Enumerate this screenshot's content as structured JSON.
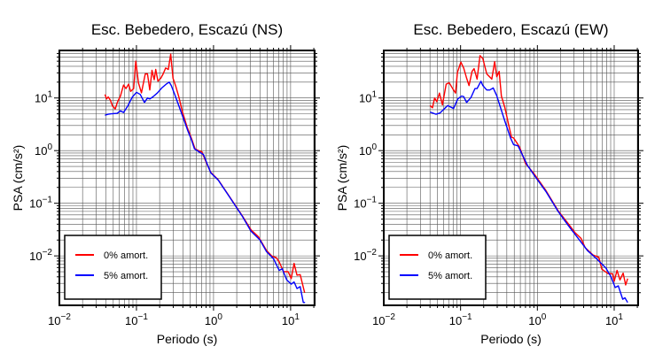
{
  "chart_data": [
    {
      "type": "line",
      "title": "Esc. Bebedero, Escazú (NS)",
      "xlabel": "Periodo (s)",
      "ylabel": "PSA (cm/s²)",
      "xscale": "log",
      "yscale": "log",
      "xlim": [
        0.01,
        20.5
      ],
      "ylim": [
        0.00115,
        80
      ],
      "xticks": [
        0.01,
        0.1,
        1,
        10
      ],
      "xtick_labels": [
        "10^-2",
        "10^-1",
        "10^0",
        "10^1"
      ],
      "yticks": [
        10,
        1,
        0.1,
        0.01
      ],
      "ytick_labels": [
        "10^1",
        "10^0",
        "10^-1",
        "10^-2"
      ],
      "grid": true,
      "legend_position": "bottom-left",
      "series": [
        {
          "name": "0% amort.",
          "color": "#ff0000",
          "x": [
            0.039,
            0.041,
            0.043,
            0.046,
            0.049,
            0.053,
            0.057,
            0.062,
            0.068,
            0.073,
            0.079,
            0.084,
            0.092,
            0.098,
            0.106,
            0.116,
            0.13,
            0.139,
            0.149,
            0.159,
            0.17,
            0.178,
            0.19,
            0.207,
            0.222,
            0.239,
            0.259,
            0.278,
            0.298,
            0.326,
            0.356,
            0.396,
            0.453,
            0.518,
            0.576,
            0.645,
            0.707,
            0.77,
            0.92,
            1.15,
            1.64,
            2.34,
            3.06,
            3.85,
            4.85,
            5.7,
            6.5,
            7.1,
            8.1,
            9.3,
            10.2,
            11.1,
            12.1,
            13.3,
            15.2
          ],
          "y": [
            11.7,
            9.6,
            10.5,
            9.0,
            7.0,
            6.2,
            8.5,
            10.9,
            17.6,
            15.1,
            18.3,
            13.3,
            15.1,
            50,
            19.5,
            12.5,
            28.7,
            28.7,
            14.2,
            33.5,
            22.2,
            34.8,
            20.8,
            23.7,
            28.7,
            37.2,
            34.8,
            68,
            23.7,
            16.1,
            10.3,
            5.4,
            2.84,
            1.69,
            1.08,
            0.99,
            0.95,
            0.69,
            0.385,
            0.28,
            0.129,
            0.059,
            0.0314,
            0.0228,
            0.0128,
            0.0099,
            0.0093,
            0.0077,
            0.005,
            0.005,
            0.0037,
            0.0072,
            0.0043,
            0.0044,
            0.002
          ]
        },
        {
          "name": "5% amort.",
          "color": "#0000ff",
          "x": [
            0.039,
            0.043,
            0.047,
            0.056,
            0.062,
            0.068,
            0.077,
            0.088,
            0.1,
            0.112,
            0.127,
            0.139,
            0.149,
            0.163,
            0.186,
            0.213,
            0.243,
            0.266,
            0.283,
            0.318,
            0.356,
            0.404,
            0.466,
            0.518,
            0.566,
            0.645,
            0.74,
            0.92,
            1.15,
            1.64,
            2.34,
            3.06,
            4.0,
            4.85,
            6.0,
            7.1,
            7.8,
            8.9,
            10.2,
            11.1,
            12.1,
            13.3,
            14.6,
            15.4
          ],
          "y": [
            4.7,
            4.9,
            5.0,
            5.1,
            5.7,
            5.3,
            7.0,
            10.3,
            12.8,
            11.7,
            8.2,
            10.0,
            9.6,
            10.5,
            12.4,
            15.5,
            18.3,
            20,
            17.2,
            11,
            7.0,
            4.2,
            2.33,
            1.59,
            1.08,
            0.95,
            0.84,
            0.38,
            0.275,
            0.127,
            0.058,
            0.0294,
            0.0201,
            0.0121,
            0.0088,
            0.0053,
            0.0057,
            0.0035,
            0.0029,
            0.0032,
            0.0024,
            0.0026,
            0.0013,
            0.0013
          ]
        }
      ]
    },
    {
      "type": "line",
      "title": "Esc. Bebedero, Escazú (EW)",
      "xlabel": "Periodo (s)",
      "ylabel": "PSA (cm/s²)",
      "xscale": "log",
      "yscale": "log",
      "xlim": [
        0.01,
        20.5
      ],
      "ylim": [
        0.00115,
        80
      ],
      "xticks": [
        0.01,
        0.1,
        1,
        10
      ],
      "xtick_labels": [
        "10^-2",
        "10^-1",
        "10^0",
        "10^1"
      ],
      "yticks": [
        10,
        1,
        0.1,
        0.01
      ],
      "ytick_labels": [
        "10^1",
        "10^0",
        "10^-1",
        "10^-2"
      ],
      "grid": true,
      "legend_position": "bottom-left",
      "series": [
        {
          "name": "0% amort.",
          "color": "#ff0000",
          "x": [
            0.04,
            0.043,
            0.046,
            0.049,
            0.053,
            0.058,
            0.065,
            0.071,
            0.079,
            0.086,
            0.091,
            0.101,
            0.11,
            0.12,
            0.129,
            0.141,
            0.15,
            0.164,
            0.179,
            0.195,
            0.219,
            0.255,
            0.278,
            0.296,
            0.318,
            0.34,
            0.378,
            0.42,
            0.46,
            0.49,
            0.54,
            0.59,
            0.7,
            0.91,
            1.29,
            1.86,
            2.52,
            3.1,
            3.7,
            4.2,
            5.3,
            6.3,
            6.9,
            8.3,
            9.5,
            10.0,
            10.9,
            11.9,
            13.1,
            14.1,
            15.0
          ],
          "y": [
            7.2,
            6.5,
            10,
            8.5,
            12.4,
            7.4,
            18.3,
            19.5,
            15,
            12.4,
            30.6,
            48,
            37,
            23.7,
            17.2,
            31.9,
            36,
            22.8,
            64,
            55.8,
            28.7,
            22.8,
            49,
            25.3,
            32,
            10.9,
            6.5,
            3.2,
            1.8,
            1.74,
            1.41,
            1.14,
            0.57,
            0.36,
            0.175,
            0.072,
            0.041,
            0.0275,
            0.0215,
            0.0143,
            0.0104,
            0.0094,
            0.0056,
            0.0046,
            0.0046,
            0.0033,
            0.0053,
            0.0035,
            0.0047,
            0.0028,
            0.0037
          ]
        },
        {
          "name": "5% amort.",
          "color": "#0000ff",
          "x": [
            0.04,
            0.048,
            0.054,
            0.068,
            0.081,
            0.092,
            0.103,
            0.11,
            0.12,
            0.137,
            0.154,
            0.164,
            0.184,
            0.195,
            0.219,
            0.24,
            0.266,
            0.296,
            0.332,
            0.378,
            0.45,
            0.49,
            0.56,
            0.74,
            0.91,
            1.29,
            1.86,
            2.52,
            3.4,
            4.5,
            5.9,
            7.8,
            9.1,
            10.3,
            11.3,
            12.9,
            13.8,
            15.0
          ],
          "y": [
            5.4,
            4.9,
            5.2,
            7.2,
            6.3,
            9.6,
            10.9,
            10.6,
            8.2,
            10.3,
            15.1,
            15.1,
            20.8,
            17.2,
            14.2,
            14.2,
            15.5,
            11,
            6.5,
            3.6,
            1.69,
            1.3,
            1.23,
            0.53,
            0.34,
            0.168,
            0.07,
            0.038,
            0.0215,
            0.0126,
            0.0088,
            0.0059,
            0.004,
            0.0025,
            0.0027,
            0.0015,
            0.0016,
            0.0013
          ]
        }
      ]
    }
  ]
}
